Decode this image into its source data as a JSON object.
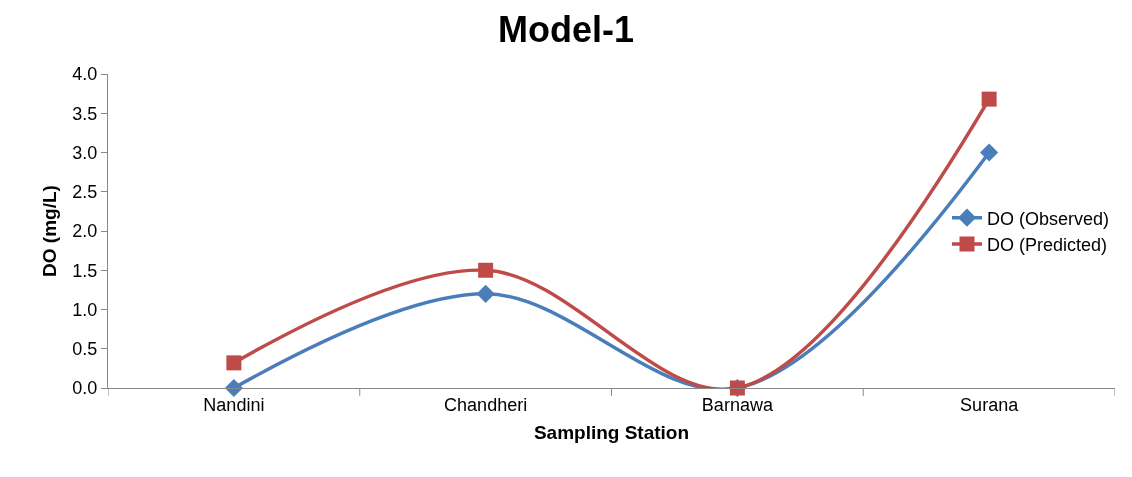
{
  "chart_data": {
    "type": "line",
    "title": "Model-1",
    "xlabel": "Sampling Station",
    "ylabel": "DO (mg/L)",
    "categories": [
      "Nandini",
      "Chandheri",
      "Barnawa",
      "Surana"
    ],
    "series": [
      {
        "name": "DO (Observed)",
        "color": "#4a7ebb",
        "values": [
          0,
          1.2,
          0,
          3.0
        ],
        "marker": "diamond"
      },
      {
        "name": "DO (Predicted)",
        "color": "#be4b48",
        "values": [
          0.32,
          1.5,
          0,
          3.68
        ],
        "marker": "square"
      }
    ],
    "ylim": [
      0,
      4
    ],
    "yticks": [
      {
        "value": 0,
        "label": "0.0"
      },
      {
        "value": 0.5,
        "label": "0.5"
      },
      {
        "value": 1,
        "label": "1.0"
      },
      {
        "value": 1.5,
        "label": "1.5"
      },
      {
        "value": 2,
        "label": "2.0"
      },
      {
        "value": 2.5,
        "label": "2.5"
      },
      {
        "value": 3,
        "label": "3.0"
      },
      {
        "value": 3.5,
        "label": "3.5"
      },
      {
        "value": 4,
        "label": "4.0"
      }
    ],
    "grid": false,
    "legend": "right",
    "line_style": "solid"
  }
}
